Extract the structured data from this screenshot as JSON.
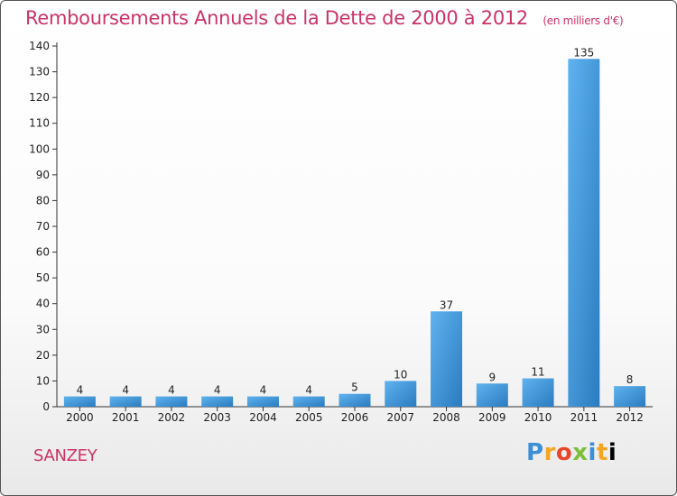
{
  "header": {
    "title": "Remboursements Annuels de la Dette de 2000 à 2012",
    "unit": "(en milliers d'€)"
  },
  "footer": {
    "commune": "SANZEY",
    "logo_text": "Proxiti"
  },
  "colors": {
    "title": "#cc3366",
    "bar_light": "#5aaeea",
    "bar_dark": "#2e7fc4",
    "axis": "#333333"
  },
  "chart_data": {
    "type": "bar",
    "title": "Remboursements Annuels de la Dette de 2000 à 2012",
    "subtitle": "(en milliers d'€)",
    "xlabel": "",
    "ylabel": "",
    "categories": [
      "2000",
      "2001",
      "2002",
      "2003",
      "2004",
      "2005",
      "2006",
      "2007",
      "2008",
      "2009",
      "2010",
      "2011",
      "2012"
    ],
    "values": [
      4,
      4,
      4,
      4,
      4,
      4,
      5,
      10,
      37,
      9,
      11,
      135,
      8
    ],
    "ylim": [
      0,
      140
    ],
    "yticks": [
      0,
      10,
      20,
      30,
      40,
      50,
      60,
      70,
      80,
      90,
      100,
      110,
      120,
      130,
      140
    ],
    "grid": false,
    "legend": "none"
  }
}
